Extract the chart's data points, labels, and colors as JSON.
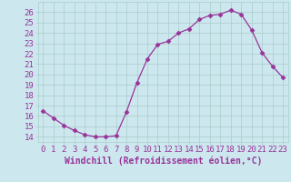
{
  "x": [
    0,
    1,
    2,
    3,
    4,
    5,
    6,
    7,
    8,
    9,
    10,
    11,
    12,
    13,
    14,
    15,
    16,
    17,
    18,
    19,
    20,
    21,
    22,
    23
  ],
  "y": [
    16.5,
    15.8,
    15.1,
    14.6,
    14.2,
    14.0,
    14.0,
    14.1,
    16.4,
    19.2,
    21.5,
    22.9,
    23.2,
    24.0,
    24.4,
    25.3,
    25.7,
    25.8,
    26.2,
    25.8,
    24.3,
    22.1,
    20.8,
    19.7
  ],
  "line_color": "#993399",
  "marker": "D",
  "marker_size": 2.5,
  "bg_color": "#cce8ee",
  "grid_color": "#aacccc",
  "xlabel": "Windchill (Refroidissement éolien,°C)",
  "xlabel_fontsize": 7,
  "xlim": [
    -0.5,
    23.5
  ],
  "ylim": [
    13.5,
    27.0
  ],
  "yticks": [
    14,
    15,
    16,
    17,
    18,
    19,
    20,
    21,
    22,
    23,
    24,
    25,
    26
  ],
  "xticks": [
    0,
    1,
    2,
    3,
    4,
    5,
    6,
    7,
    8,
    9,
    10,
    11,
    12,
    13,
    14,
    15,
    16,
    17,
    18,
    19,
    20,
    21,
    22,
    23
  ],
  "tick_fontsize": 6.5,
  "tick_color": "#993399"
}
